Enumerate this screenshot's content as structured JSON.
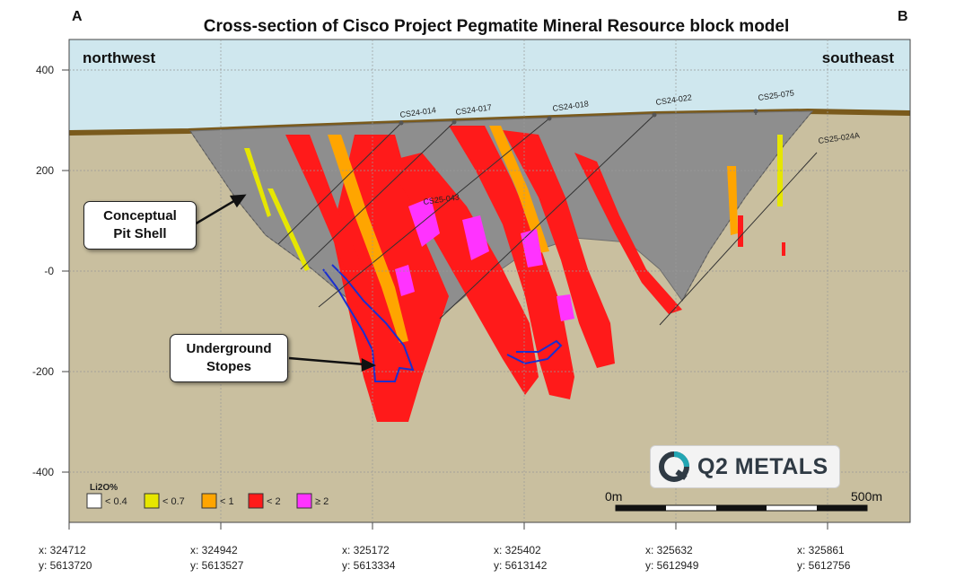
{
  "title": "Cross-section of Cisco Project Pegmatite Mineral Resource block model",
  "corner_a": "A",
  "corner_b": "B",
  "direction_left": "northwest",
  "direction_right": "southeast",
  "callouts": {
    "pit_shell": [
      "Conceptual",
      "Pit Shell"
    ],
    "stopes": [
      "Underground",
      "Stopes"
    ]
  },
  "drillholes": [
    "CS24-014",
    "CS24-017",
    "CS24-018",
    "CS24-022",
    "CS25-075",
    "CS25-024A",
    "CS25-043"
  ],
  "elevation_ticks": [
    "400",
    "200",
    "-0",
    "-200",
    "-400"
  ],
  "coordinate_ticks": [
    {
      "x": "x: 324712",
      "y": "y: 5613720"
    },
    {
      "x": "x: 324942",
      "y": "y: 5613527"
    },
    {
      "x": "x: 325172",
      "y": "y: 5613334"
    },
    {
      "x": "x: 325402",
      "y": "y: 5613142"
    },
    {
      "x": "x: 325632",
      "y": "y: 5612949"
    },
    {
      "x": "x: 325861",
      "y": "y: 5612756"
    }
  ],
  "legend": {
    "title": "Li2O%",
    "items": [
      {
        "label": "< 0.4",
        "color": "#ffffff"
      },
      {
        "label": "< 0.7",
        "color": "#e6e600"
      },
      {
        "label": "< 1",
        "color": "#ffa500"
      },
      {
        "label": "< 2",
        "color": "#ff1a1a"
      },
      {
        "label": "≥ 2",
        "color": "#ff33ff"
      }
    ]
  },
  "scale_bar": {
    "start": "0m",
    "end": "500m"
  },
  "logo_text": "Q2 METALS",
  "colors": {
    "sky": "#cfe7ee",
    "ground": "#c9bf9f",
    "overburden": "#7a5a1c",
    "pit_shell": "#8e8e8e",
    "stope_outline": "#1a2fd0"
  }
}
